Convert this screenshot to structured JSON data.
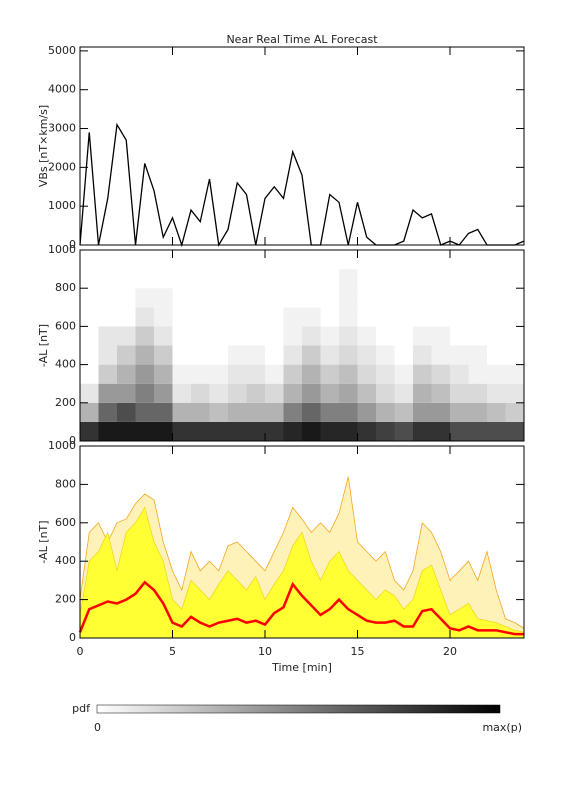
{
  "chart_data": [
    {
      "type": "line",
      "title": "Near Real Time AL Forecast",
      "ylabel": "VBs [nT×km/s]",
      "x": [
        0,
        0.5,
        1,
        1.5,
        2,
        2.5,
        3,
        3.5,
        4,
        4.5,
        5,
        5.5,
        6,
        6.5,
        7,
        7.5,
        8,
        8.5,
        9,
        9.5,
        10,
        10.5,
        11,
        11.5,
        12,
        12.5,
        13,
        13.5,
        14,
        14.5,
        15,
        15.5,
        16,
        16.5,
        17,
        17.5,
        18,
        18.5,
        19,
        19.5,
        20,
        20.5,
        21,
        21.5,
        22,
        22.5,
        23,
        23.5,
        24
      ],
      "series": [
        {
          "color": "#000000",
          "values": [
            0,
            2900,
            0,
            1200,
            3100,
            2700,
            0,
            2100,
            1400,
            200,
            700,
            0,
            900,
            600,
            1700,
            0,
            400,
            1600,
            1300,
            0,
            1200,
            1500,
            1200,
            2400,
            1800,
            0,
            0,
            1300,
            1100,
            0,
            1100,
            200,
            0,
            0,
            0,
            100,
            900,
            700,
            800,
            0,
            100,
            0,
            300,
            400,
            0,
            0,
            0,
            0,
            100
          ]
        }
      ],
      "xlim": [
        0,
        24
      ],
      "xticks": [
        0,
        5,
        10,
        15,
        20
      ],
      "ylim": [
        0,
        5100
      ],
      "yticks": [
        0,
        1000,
        2000,
        3000,
        4000,
        5000
      ]
    },
    {
      "type": "heatmap",
      "ylabel": "-AL [nT]",
      "xbins": [
        0,
        1,
        2,
        3,
        4,
        5,
        6,
        7,
        8,
        9,
        10,
        11,
        12,
        13,
        14,
        15,
        16,
        17,
        18,
        19,
        20,
        21,
        22,
        23,
        24
      ],
      "ybins": [
        0,
        100,
        200,
        300,
        400,
        500,
        600,
        700,
        800,
        900,
        1000
      ],
      "z": [
        [
          0.8,
          0.3,
          0.1,
          0,
          0,
          0,
          0,
          0,
          0,
          0
        ],
        [
          0.9,
          0.6,
          0.4,
          0.2,
          0.1,
          0.1,
          0,
          0,
          0,
          0
        ],
        [
          0.9,
          0.7,
          0.4,
          0.3,
          0.2,
          0.1,
          0,
          0,
          0,
          0
        ],
        [
          0.9,
          0.6,
          0.5,
          0.4,
          0.3,
          0.2,
          0.1,
          0.05,
          0,
          0
        ],
        [
          0.9,
          0.6,
          0.4,
          0.3,
          0.2,
          0.1,
          0.05,
          0.05,
          0,
          0
        ],
        [
          0.8,
          0.3,
          0.1,
          0.05,
          0,
          0,
          0,
          0,
          0,
          0
        ],
        [
          0.8,
          0.3,
          0.15,
          0.05,
          0,
          0,
          0,
          0,
          0,
          0
        ],
        [
          0.8,
          0.25,
          0.1,
          0.05,
          0,
          0,
          0,
          0,
          0,
          0
        ],
        [
          0.8,
          0.3,
          0.15,
          0.1,
          0.05,
          0,
          0,
          0,
          0,
          0
        ],
        [
          0.8,
          0.3,
          0.2,
          0.1,
          0.05,
          0,
          0,
          0,
          0,
          0
        ],
        [
          0.8,
          0.3,
          0.15,
          0.05,
          0,
          0,
          0,
          0,
          0,
          0
        ],
        [
          0.85,
          0.5,
          0.3,
          0.2,
          0.1,
          0.05,
          0.05,
          0,
          0,
          0
        ],
        [
          0.9,
          0.6,
          0.4,
          0.3,
          0.2,
          0.1,
          0.05,
          0,
          0,
          0
        ],
        [
          0.85,
          0.5,
          0.3,
          0.2,
          0.1,
          0.05,
          0,
          0,
          0,
          0
        ],
        [
          0.85,
          0.5,
          0.35,
          0.25,
          0.15,
          0.1,
          0.05,
          0.05,
          0.05,
          0
        ],
        [
          0.8,
          0.4,
          0.25,
          0.15,
          0.1,
          0.05,
          0,
          0,
          0,
          0
        ],
        [
          0.75,
          0.3,
          0.15,
          0.1,
          0.05,
          0,
          0,
          0,
          0,
          0
        ],
        [
          0.7,
          0.25,
          0.1,
          0.05,
          0,
          0,
          0,
          0,
          0,
          0
        ],
        [
          0.8,
          0.4,
          0.3,
          0.2,
          0.1,
          0.05,
          0,
          0,
          0,
          0
        ],
        [
          0.8,
          0.4,
          0.25,
          0.15,
          0.05,
          0.05,
          0,
          0,
          0,
          0
        ],
        [
          0.7,
          0.3,
          0.15,
          0.1,
          0.05,
          0,
          0,
          0,
          0,
          0
        ],
        [
          0.7,
          0.3,
          0.15,
          0.05,
          0.05,
          0,
          0,
          0,
          0,
          0
        ],
        [
          0.7,
          0.25,
          0.1,
          0.05,
          0,
          0,
          0,
          0,
          0,
          0
        ],
        [
          0.7,
          0.2,
          0.1,
          0.05,
          0,
          0,
          0,
          0,
          0,
          0
        ]
      ],
      "xlim": [
        0,
        24
      ],
      "xticks": [
        0,
        5,
        10,
        15,
        20
      ],
      "ylim": [
        0,
        1000
      ],
      "yticks": [
        0,
        200,
        400,
        600,
        800,
        1000
      ]
    },
    {
      "type": "area",
      "ylabel": "-AL [nT]",
      "xlabel": "Time [min]",
      "x": [
        0,
        0.5,
        1,
        1.5,
        2,
        2.5,
        3,
        3.5,
        4,
        4.5,
        5,
        5.5,
        6,
        6.5,
        7,
        7.5,
        8,
        8.5,
        9,
        9.5,
        10,
        10.5,
        11,
        11.5,
        12,
        12.5,
        13,
        13.5,
        14,
        14.5,
        15,
        15.5,
        16,
        16.5,
        17,
        17.5,
        18,
        18.5,
        19,
        19.5,
        20,
        20.5,
        21,
        21.5,
        22,
        22.5,
        23,
        23.5,
        24
      ],
      "series": [
        {
          "color": "#f5a623",
          "fill": "#fff2b8",
          "values": [
            200,
            550,
            600,
            500,
            600,
            620,
            700,
            750,
            720,
            500,
            350,
            250,
            450,
            350,
            400,
            350,
            480,
            500,
            450,
            400,
            350,
            450,
            550,
            680,
            620,
            550,
            600,
            550,
            650,
            840,
            500,
            450,
            400,
            450,
            300,
            250,
            350,
            600,
            550,
            450,
            300,
            350,
            400,
            300,
            450,
            250,
            100,
            80,
            50
          ]
        },
        {
          "color": "#f0d820",
          "fill": "#ffff33",
          "values": [
            120,
            400,
            450,
            550,
            350,
            550,
            600,
            680,
            500,
            400,
            200,
            150,
            300,
            250,
            200,
            280,
            350,
            300,
            250,
            320,
            200,
            280,
            350,
            480,
            550,
            400,
            300,
            400,
            450,
            350,
            300,
            250,
            200,
            250,
            220,
            150,
            200,
            350,
            380,
            250,
            120,
            150,
            180,
            100,
            90,
            80,
            60,
            40,
            30
          ]
        },
        {
          "color": "#ff0000",
          "values": [
            30,
            150,
            170,
            190,
            180,
            200,
            230,
            290,
            250,
            180,
            80,
            60,
            110,
            80,
            60,
            80,
            90,
            100,
            80,
            90,
            70,
            130,
            160,
            280,
            220,
            170,
            120,
            150,
            200,
            150,
            120,
            90,
            80,
            80,
            90,
            60,
            60,
            140,
            150,
            100,
            50,
            40,
            60,
            40,
            40,
            40,
            30,
            20,
            20
          ]
        }
      ],
      "xlim": [
        0,
        24
      ],
      "xticks": [
        0,
        5,
        10,
        15,
        20
      ],
      "ylim": [
        0,
        1000
      ],
      "yticks": [
        0,
        200,
        400,
        600,
        800,
        1000
      ]
    }
  ],
  "colorbar": {
    "label": "pdf",
    "min_label": "0",
    "max_label": "max(p)"
  }
}
